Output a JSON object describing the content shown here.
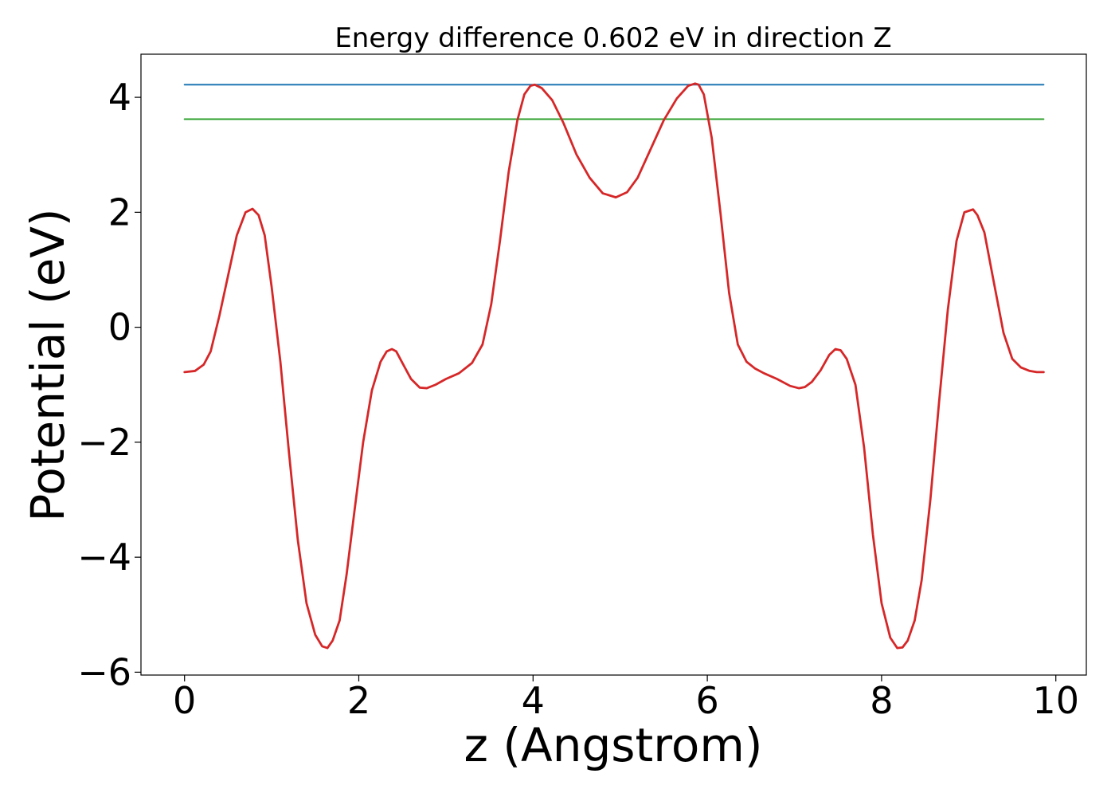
{
  "chart_data": {
    "type": "line",
    "title": "Energy difference 0.602 eV in direction Z",
    "xlabel": "z (Angstrom)",
    "ylabel": "Potential (eV)",
    "xlim": [
      -0.5,
      10.35
    ],
    "ylim": [
      -6.05,
      4.75
    ],
    "xticks": [
      0,
      2,
      4,
      6,
      8,
      10
    ],
    "xtick_labels": [
      "0",
      "2",
      "4",
      "6",
      "8",
      "10"
    ],
    "yticks": [
      -6,
      -4,
      -2,
      0,
      2,
      4
    ],
    "ytick_labels": [
      "−6",
      "−4",
      "−2",
      "0",
      "2",
      "4"
    ],
    "grid": false,
    "legend": "none",
    "series": [
      {
        "color": "#d62728",
        "kind": "curve",
        "x": [
          0.0,
          0.12,
          0.22,
          0.3,
          0.4,
          0.5,
          0.6,
          0.7,
          0.78,
          0.85,
          0.92,
          1.0,
          1.1,
          1.2,
          1.3,
          1.4,
          1.5,
          1.58,
          1.64,
          1.7,
          1.78,
          1.86,
          1.95,
          2.05,
          2.15,
          2.25,
          2.32,
          2.38,
          2.43,
          2.5,
          2.6,
          2.7,
          2.78,
          2.88,
          3.0,
          3.15,
          3.3,
          3.42,
          3.52,
          3.62,
          3.72,
          3.82,
          3.9,
          3.97,
          4.02,
          4.1,
          4.22,
          4.35,
          4.5,
          4.65,
          4.8,
          4.95,
          5.08,
          5.2,
          5.35,
          5.5,
          5.65,
          5.78,
          5.86,
          5.9,
          5.96,
          6.05,
          6.15,
          6.25,
          6.35,
          6.45,
          6.55,
          6.65,
          6.8,
          6.95,
          7.05,
          7.12,
          7.2,
          7.3,
          7.4,
          7.47,
          7.53,
          7.6,
          7.7,
          7.8,
          7.9,
          8.0,
          8.1,
          8.18,
          8.24,
          8.3,
          8.38,
          8.46,
          8.56,
          8.66,
          8.76,
          8.86,
          8.95,
          9.05,
          9.1,
          9.18,
          9.28,
          9.4,
          9.5,
          9.6,
          9.7,
          9.78,
          9.86
        ],
        "y": [
          -0.78,
          -0.76,
          -0.65,
          -0.42,
          0.2,
          0.9,
          1.6,
          2.0,
          2.06,
          1.95,
          1.6,
          0.7,
          -0.6,
          -2.2,
          -3.7,
          -4.8,
          -5.35,
          -5.55,
          -5.58,
          -5.45,
          -5.1,
          -4.3,
          -3.2,
          -2.0,
          -1.1,
          -0.6,
          -0.42,
          -0.38,
          -0.42,
          -0.62,
          -0.9,
          -1.05,
          -1.06,
          -1.0,
          -0.9,
          -0.8,
          -0.62,
          -0.3,
          0.4,
          1.5,
          2.7,
          3.6,
          4.05,
          4.2,
          4.22,
          4.16,
          3.95,
          3.55,
          3.0,
          2.6,
          2.33,
          2.26,
          2.35,
          2.6,
          3.1,
          3.6,
          3.98,
          4.2,
          4.24,
          4.22,
          4.05,
          3.3,
          2.0,
          0.6,
          -0.3,
          -0.6,
          -0.72,
          -0.8,
          -0.9,
          -1.02,
          -1.06,
          -1.04,
          -0.95,
          -0.75,
          -0.48,
          -0.38,
          -0.4,
          -0.55,
          -1.0,
          -2.1,
          -3.6,
          -4.8,
          -5.4,
          -5.58,
          -5.57,
          -5.45,
          -5.1,
          -4.4,
          -3.0,
          -1.3,
          0.3,
          1.5,
          2.0,
          2.05,
          1.95,
          1.65,
          0.85,
          -0.1,
          -0.55,
          -0.7,
          -0.76,
          -0.78,
          -0.78
        ]
      },
      {
        "color": "#1f77b4",
        "kind": "horizontal",
        "x": [
          0.0,
          9.86
        ],
        "y": [
          4.22,
          4.22
        ]
      },
      {
        "color": "#2ca02c",
        "kind": "horizontal",
        "x": [
          0.0,
          9.86
        ],
        "y": [
          3.62,
          3.62
        ]
      }
    ]
  }
}
